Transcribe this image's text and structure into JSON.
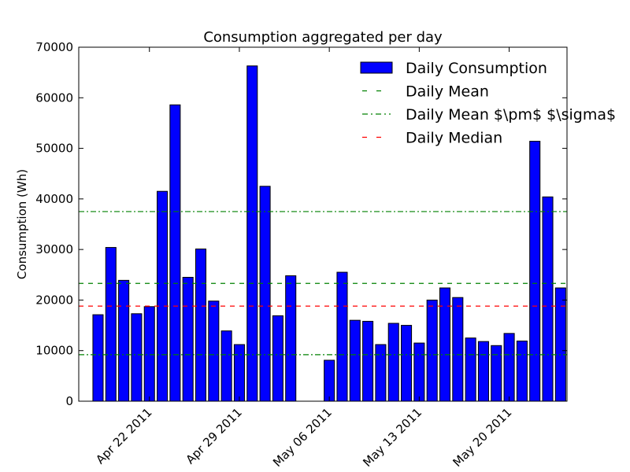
{
  "chart_data": {
    "type": "bar",
    "title": "Consumption aggregated per day",
    "xlabel": "",
    "ylabel": "Consumption (Wh)",
    "ylim": [
      0,
      70000
    ],
    "yticks": [
      0,
      10000,
      20000,
      30000,
      40000,
      50000,
      60000,
      70000
    ],
    "xlim": [
      "2011-04-16T12:00",
      "2011-05-24T12:00"
    ],
    "xticks": [
      {
        "date": "2011-04-22",
        "label": "Apr 22 2011"
      },
      {
        "date": "2011-04-29",
        "label": "Apr 29 2011"
      },
      {
        "date": "2011-05-06",
        "label": "May 06 2011"
      },
      {
        "date": "2011-05-13",
        "label": "May 13 2011"
      },
      {
        "date": "2011-05-20",
        "label": "May 20 2011"
      }
    ],
    "grid": false,
    "legend_position": "top-right",
    "series": [
      {
        "name": "Daily Consumption",
        "kind": "bar",
        "color": "#0000ff",
        "dates": [
          "2011-04-18",
          "2011-04-19",
          "2011-04-20",
          "2011-04-21",
          "2011-04-22",
          "2011-04-23",
          "2011-04-24",
          "2011-04-25",
          "2011-04-26",
          "2011-04-27",
          "2011-04-28",
          "2011-04-29",
          "2011-04-30",
          "2011-05-01",
          "2011-05-02",
          "2011-05-03",
          "2011-05-04",
          "2011-05-05",
          "2011-05-06",
          "2011-05-07",
          "2011-05-08",
          "2011-05-09",
          "2011-05-10",
          "2011-05-11",
          "2011-05-12",
          "2011-05-13",
          "2011-05-14",
          "2011-05-15",
          "2011-05-16",
          "2011-05-17",
          "2011-05-18",
          "2011-05-19",
          "2011-05-20",
          "2011-05-21",
          "2011-05-22",
          "2011-05-23",
          "2011-05-24"
        ],
        "values": [
          17100,
          30400,
          23900,
          17300,
          18700,
          41500,
          58600,
          24500,
          30100,
          19800,
          13900,
          11200,
          66300,
          42500,
          16900,
          24800,
          0,
          0,
          8100,
          25500,
          16000,
          15800,
          11200,
          15400,
          15000,
          11500,
          20000,
          22400,
          20500,
          12500,
          11800,
          11000,
          13400,
          11900,
          51400,
          40400,
          22400
        ]
      },
      {
        "name": "Daily Mean",
        "kind": "hline",
        "style": "dashed",
        "color": "#008000",
        "y": 23300
      },
      {
        "name": "Daily Mean $\\pm$ $\\sigma$",
        "kind": "hline-band",
        "style": "dashdot",
        "color": "#008000",
        "y": [
          9200,
          37500
        ]
      },
      {
        "name": "Daily Median",
        "kind": "hline",
        "style": "dashed",
        "color": "#ff0000",
        "y": 18800
      }
    ]
  }
}
